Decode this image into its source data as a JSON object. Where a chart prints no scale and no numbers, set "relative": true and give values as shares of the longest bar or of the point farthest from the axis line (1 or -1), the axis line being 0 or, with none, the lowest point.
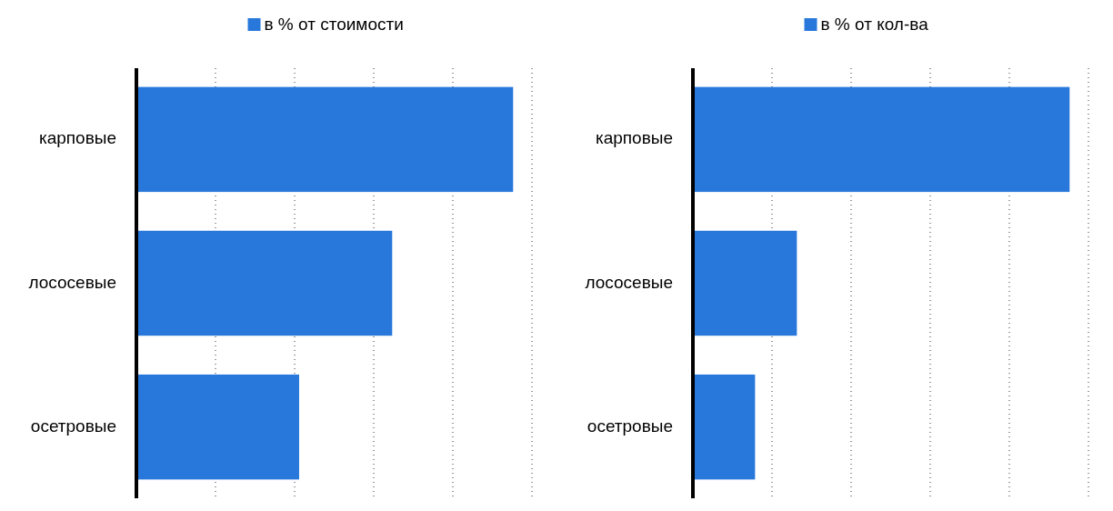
{
  "chart_data": [
    {
      "type": "bar",
      "orientation": "horizontal",
      "relative": true,
      "categories": [
        "карповые",
        "лососевые",
        "осетровые"
      ],
      "series": [
        {
          "name": "в % от стоимости",
          "color": "#2878dc",
          "values": [
            1,
            0.679,
            0.432
          ]
        }
      ],
      "grid": "x",
      "legend": "top"
    },
    {
      "type": "bar",
      "orientation": "horizontal",
      "relative": true,
      "categories": [
        "карповые",
        "лососевые",
        "осетровые"
      ],
      "series": [
        {
          "name": "в % от кол-ва",
          "color": "#2878dc",
          "values": [
            1,
            0.276,
            0.165
          ]
        }
      ],
      "grid": "x",
      "legend": "top"
    }
  ]
}
